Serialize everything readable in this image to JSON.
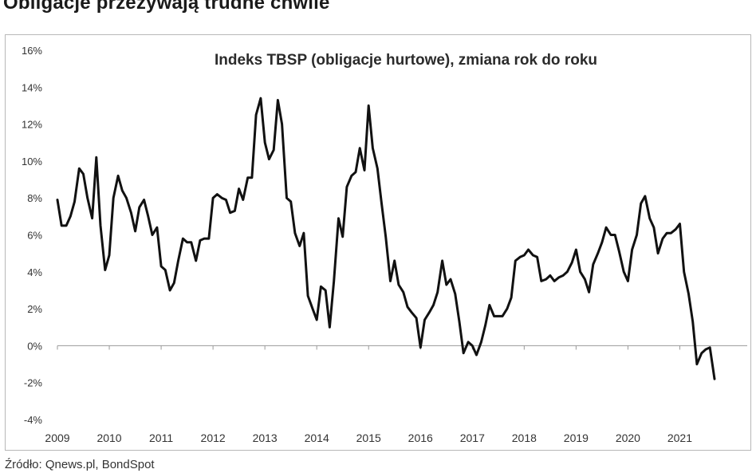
{
  "page": {
    "title": "Obligacje przeżywają trudne chwile",
    "source": "Źródło: Qnews.pl, BondSpot"
  },
  "chart_data": {
    "type": "line",
    "title": "Indeks TBSP (obligacje hurtowe), zmiana rok do roku",
    "xlabel": "",
    "ylabel": "",
    "ylim": [
      -4,
      16
    ],
    "y_ticks": [
      -4,
      -2,
      0,
      2,
      4,
      6,
      8,
      10,
      12,
      14,
      16
    ],
    "y_tick_labels": [
      "-4%",
      "-2%",
      "0%",
      "2%",
      "4%",
      "6%",
      "8%",
      "10%",
      "12%",
      "14%",
      "16%"
    ],
    "x_tick_labels": [
      "2009",
      "2010",
      "2011",
      "2012",
      "2013",
      "2014",
      "2015",
      "2016",
      "2017",
      "2018",
      "2019",
      "2020",
      "2021"
    ],
    "xlim": [
      2009,
      2022.3
    ],
    "grid": false,
    "line_color": "#111111",
    "series": [
      {
        "x": [
          2009.0,
          2009.08,
          2009.17,
          2009.25,
          2009.33,
          2009.42,
          2009.5,
          2009.58,
          2009.67,
          2009.75,
          2009.83,
          2009.92,
          2010.0,
          2010.08,
          2010.17,
          2010.25,
          2010.33,
          2010.42,
          2010.5,
          2010.58,
          2010.67,
          2010.75,
          2010.83,
          2010.92,
          2011.0,
          2011.08,
          2011.17,
          2011.25,
          2011.33,
          2011.42,
          2011.5,
          2011.58,
          2011.67,
          2011.75,
          2011.83,
          2011.92,
          2012.0,
          2012.08,
          2012.17,
          2012.25,
          2012.33,
          2012.42,
          2012.5,
          2012.58,
          2012.67,
          2012.75,
          2012.83,
          2012.92,
          2013.0,
          2013.08,
          2013.17,
          2013.25,
          2013.33,
          2013.42,
          2013.5,
          2013.58,
          2013.67,
          2013.75,
          2013.83,
          2013.92,
          2014.0,
          2014.08,
          2014.17,
          2014.25,
          2014.33,
          2014.42,
          2014.5,
          2014.58,
          2014.67,
          2014.75,
          2014.83,
          2014.92,
          2015.0,
          2015.08,
          2015.17,
          2015.25,
          2015.33,
          2015.42,
          2015.5,
          2015.58,
          2015.67,
          2015.75,
          2015.83,
          2015.92,
          2016.0,
          2016.08,
          2016.17,
          2016.25,
          2016.33,
          2016.42,
          2016.5,
          2016.58,
          2016.67,
          2016.75,
          2016.83,
          2016.92,
          2017.0,
          2017.08,
          2017.17,
          2017.25,
          2017.33,
          2017.42,
          2017.5,
          2017.58,
          2017.67,
          2017.75,
          2017.83,
          2017.92,
          2018.0,
          2018.08,
          2018.17,
          2018.25,
          2018.33,
          2018.42,
          2018.5,
          2018.58,
          2018.67,
          2018.75,
          2018.83,
          2018.92,
          2019.0,
          2019.08,
          2019.17,
          2019.25,
          2019.33,
          2019.42,
          2019.5,
          2019.58,
          2019.67,
          2019.75,
          2019.83,
          2019.92,
          2020.0,
          2020.08,
          2020.17,
          2020.25,
          2020.33,
          2020.42,
          2020.5,
          2020.58,
          2020.67,
          2020.75,
          2020.83,
          2020.92,
          2021.0,
          2021.08,
          2021.17,
          2021.25,
          2021.33,
          2021.42,
          2021.5,
          2021.58,
          2021.67
        ],
        "y": [
          7.9,
          6.5,
          6.5,
          7.0,
          7.8,
          9.6,
          9.3,
          8.0,
          6.9,
          10.2,
          6.5,
          4.1,
          4.9,
          8.0,
          9.2,
          8.4,
          8.0,
          7.2,
          6.2,
          7.5,
          7.9,
          7.0,
          6.0,
          6.4,
          4.3,
          4.1,
          3.0,
          3.4,
          4.6,
          5.8,
          5.6,
          5.6,
          4.6,
          5.7,
          5.8,
          5.8,
          8.0,
          8.2,
          8.0,
          7.9,
          7.2,
          7.3,
          8.5,
          7.9,
          9.1,
          9.1,
          12.5,
          13.4,
          11.0,
          10.1,
          10.6,
          13.3,
          12.0,
          8.0,
          7.8,
          6.1,
          5.4,
          6.1,
          2.7,
          2.0,
          1.4,
          3.2,
          3.0,
          1.0,
          3.5,
          6.9,
          5.9,
          8.6,
          9.2,
          9.4,
          10.7,
          9.5,
          13.0,
          10.7,
          9.6,
          7.7,
          5.9,
          3.5,
          4.6,
          3.3,
          2.9,
          2.1,
          1.8,
          1.5,
          -0.1,
          1.4,
          1.8,
          2.2,
          2.9,
          4.6,
          3.3,
          3.6,
          2.8,
          1.3,
          -0.4,
          0.2,
          0.0,
          -0.5,
          0.2,
          1.1,
          2.2,
          1.6,
          1.6,
          1.6,
          2.0,
          2.6,
          4.6,
          4.8,
          4.9,
          5.2,
          4.9,
          4.8,
          3.5,
          3.6,
          3.8,
          3.5,
          3.7,
          3.8,
          4.0,
          4.5,
          5.2,
          4.0,
          3.6,
          2.9,
          4.4,
          5.0,
          5.6,
          6.4,
          6.0,
          6.0,
          5.1,
          4.0,
          3.5,
          5.2,
          6.0,
          7.7,
          8.1,
          6.9,
          6.4,
          5.0,
          5.8,
          6.1,
          6.1,
          6.3,
          6.6,
          4.0,
          2.8,
          1.3,
          -1.0,
          -0.4,
          -0.2,
          -0.1,
          -1.8
        ]
      }
    ]
  }
}
